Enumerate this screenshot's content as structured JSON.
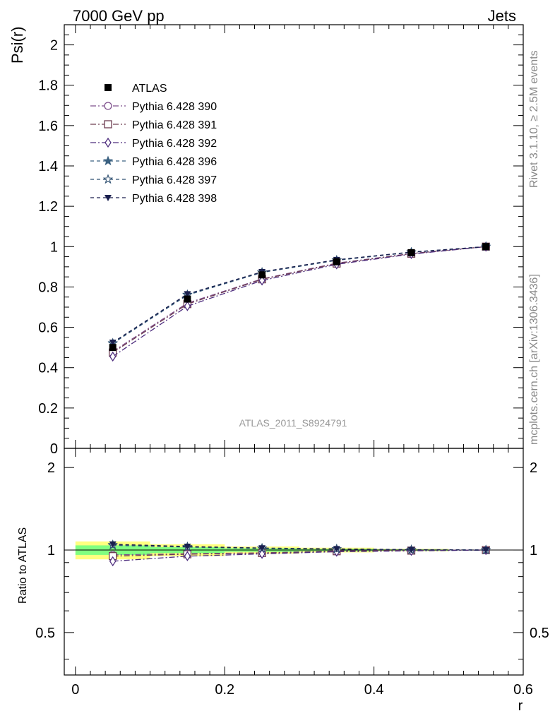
{
  "header": {
    "left": "7000 GeV pp",
    "right": "Jets"
  },
  "side_labels": {
    "rivet": "Rivet 3.1.10, ≥ 2.5M events",
    "mcplots": "mcplots.cern.ch [arXiv:1306.3436]"
  },
  "watermark": "ATLAS_2011_S8924791",
  "chart_data": [
    {
      "type": "line",
      "ylabel": "Psi(r)",
      "xlabel": "r",
      "xlim": [
        -0.015,
        0.6
      ],
      "ylim": [
        0,
        2.1
      ],
      "y_ticks": [
        0,
        0.2,
        0.4,
        0.6,
        0.8,
        1,
        1.2,
        1.4,
        1.6,
        1.8,
        2
      ],
      "y_tick_labels": [
        "0",
        "0.2",
        "0.4",
        "0.6",
        "0.8",
        "1",
        "1.2",
        "1.4",
        "1.6",
        "1.8",
        "2"
      ],
      "legend_position": "top-left",
      "x": [
        0.05,
        0.15,
        0.25,
        0.35,
        0.45,
        0.55
      ],
      "reference": {
        "name": "ATLAS",
        "values": [
          0.5,
          0.74,
          0.86,
          0.925,
          0.97,
          1.0
        ],
        "marker": "square-filled",
        "color": "#000000"
      },
      "series": [
        {
          "name": "Pythia 6.428 390",
          "values": [
            0.48,
            0.72,
            0.84,
            0.918,
            0.966,
            1.0
          ],
          "marker": "circle-open",
          "color": "#7e4f8c",
          "dash": "8,3,2,3"
        },
        {
          "name": "Pythia 6.428 391",
          "values": [
            0.475,
            0.715,
            0.838,
            0.916,
            0.965,
            1.0
          ],
          "marker": "square-open",
          "color": "#6e3d52",
          "dash": "8,3,2,3"
        },
        {
          "name": "Pythia 6.428 392",
          "values": [
            0.455,
            0.705,
            0.832,
            0.912,
            0.963,
            1.0
          ],
          "marker": "diamond-open",
          "color": "#4e2d7e",
          "dash": "8,3,2,3"
        },
        {
          "name": "Pythia 6.428 396",
          "values": [
            0.52,
            0.76,
            0.872,
            0.932,
            0.972,
            1.0
          ],
          "marker": "star-filled",
          "color": "#3a6080",
          "dash": "5,4"
        },
        {
          "name": "Pythia 6.428 397",
          "values": [
            0.522,
            0.762,
            0.873,
            0.933,
            0.972,
            1.0
          ],
          "marker": "star-open",
          "color": "#2e4f70",
          "dash": "5,4"
        },
        {
          "name": "Pythia 6.428 398",
          "values": [
            0.525,
            0.765,
            0.875,
            0.935,
            0.973,
            1.0
          ],
          "marker": "triangle-down-filled",
          "color": "#1a1f4e",
          "dash": "5,4"
        }
      ]
    },
    {
      "type": "line",
      "ylabel": "Ratio to ATLAS",
      "xlabel": "r",
      "xlim": [
        -0.015,
        0.6
      ],
      "ylim": [
        0.35,
        2.35
      ],
      "log_y": true,
      "y_ticks": [
        0.5,
        1,
        2
      ],
      "y_tick_labels": [
        "0.5",
        "1",
        "2"
      ],
      "x_ticks": [
        0,
        0.2,
        0.4,
        0.6
      ],
      "x_tick_labels": [
        "0",
        "0.2",
        "0.4",
        "0.6"
      ],
      "x": [
        0.05,
        0.15,
        0.25,
        0.35,
        0.45,
        0.55
      ],
      "bands": [
        {
          "x_lo": 0.0,
          "x_hi": 0.1,
          "yellow": [
            0.925,
            1.075
          ],
          "green": [
            0.96,
            1.04
          ]
        },
        {
          "x_lo": 0.1,
          "x_hi": 0.2,
          "yellow": [
            0.95,
            1.05
          ],
          "green": [
            0.975,
            1.025
          ]
        },
        {
          "x_lo": 0.2,
          "x_hi": 0.3,
          "yellow": [
            0.97,
            1.03
          ],
          "green": [
            0.985,
            1.015
          ]
        },
        {
          "x_lo": 0.3,
          "x_hi": 0.4,
          "yellow": [
            0.98,
            1.02
          ],
          "green": [
            0.99,
            1.01
          ]
        },
        {
          "x_lo": 0.4,
          "x_hi": 0.5,
          "yellow": [
            0.99,
            1.01
          ],
          "green": [
            0.995,
            1.005
          ]
        }
      ],
      "series": [
        {
          "name": "Pythia 6.428 390",
          "values": [
            0.96,
            0.97,
            0.977,
            0.993,
            0.996,
            1.0
          ]
        },
        {
          "name": "Pythia 6.428 391",
          "values": [
            0.95,
            0.965,
            0.975,
            0.99,
            0.995,
            1.0
          ]
        },
        {
          "name": "Pythia 6.428 392",
          "values": [
            0.91,
            0.95,
            0.968,
            0.986,
            0.993,
            1.0
          ]
        },
        {
          "name": "Pythia 6.428 396",
          "values": [
            1.04,
            1.025,
            1.014,
            1.008,
            1.002,
            1.0
          ]
        },
        {
          "name": "Pythia 6.428 397",
          "values": [
            1.045,
            1.027,
            1.015,
            1.009,
            1.002,
            1.0
          ]
        },
        {
          "name": "Pythia 6.428 398",
          "values": [
            1.05,
            1.03,
            1.017,
            1.01,
            1.003,
            1.0
          ]
        }
      ]
    }
  ]
}
